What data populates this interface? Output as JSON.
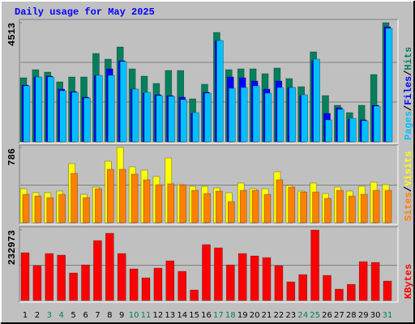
{
  "chart_data": [
    {
      "type": "bar",
      "title": "Daily usage for May 2025",
      "title_color": "#0000ff",
      "legend_separator": "/",
      "ylim": [
        0,
        4513
      ],
      "yticks": [
        4513
      ],
      "grid_lines": 3,
      "series": [
        {
          "name": "Hits",
          "color": "#00805c",
          "values": [
            2425,
            2732,
            2640,
            2272,
            2456,
            2456,
            3346,
            3131,
            3592,
            2763,
            2487,
            2210,
            2702,
            2702,
            1627,
            2180,
            4144,
            2732,
            2763,
            2763,
            2579,
            2794,
            2395,
            2088,
            3408,
            1750,
            1382,
            1105,
            1382,
            2548,
            4513
          ]
        },
        {
          "name": "Files",
          "color": "#0000ff",
          "values": [
            2149,
            2456,
            2487,
            1996,
            1903,
            1689,
            2517,
            2763,
            3070,
            1996,
            1842,
            1781,
            1750,
            1689,
            1075,
            1873,
            3838,
            2456,
            2425,
            2303,
            1996,
            2303,
            2057,
            1750,
            3070,
            1075,
            1289,
            860,
            829,
            1382,
            4359
          ]
        },
        {
          "name": "Pages",
          "color": "#00c0ff",
          "values": [
            2118,
            2456,
            2456,
            1934,
            1873,
            1658,
            2517,
            2517,
            3039,
            1996,
            1873,
            1750,
            1719,
            1596,
            1105,
            1842,
            3838,
            2026,
            2057,
            2118,
            1842,
            2057,
            2057,
            1781,
            3131,
            829,
            1228,
            890,
            798,
            1351,
            4298
          ]
        }
      ]
    },
    {
      "type": "bar",
      "legend_separator": "/",
      "ylim": [
        0,
        786
      ],
      "yticks": [
        786
      ],
      "grid_lines": 2,
      "series": [
        {
          "name": "Visits",
          "color": "#ffff00",
          "values": [
            355,
            313,
            313,
            330,
            617,
            296,
            372,
            642,
            786,
            583,
            549,
            482,
            676,
            397,
            380,
            380,
            363,
            313,
            414,
            355,
            355,
            532,
            389,
            330,
            414,
            304,
            372,
            330,
            380,
            423,
            397
          ]
        },
        {
          "name": "Sites",
          "color": "#ff8000",
          "values": [
            296,
            279,
            262,
            296,
            515,
            262,
            355,
            558,
            558,
            507,
            448,
            397,
            406,
            397,
            338,
            304,
            330,
            220,
            338,
            338,
            296,
            448,
            372,
            321,
            321,
            254,
            338,
            279,
            296,
            338,
            338
          ]
        }
      ]
    },
    {
      "type": "bar",
      "ylim": [
        0,
        232973
      ],
      "yticks": [
        232973
      ],
      "grid_lines": 2,
      "series": [
        {
          "name": "KBytes",
          "color": "#ff0000",
          "values": [
            158000,
            115154,
            155324,
            149968,
            91052,
            117832,
            198172,
            222274,
            155324,
            104442,
            74984,
            107120,
            131222,
            96408,
            34814,
            184782,
            174070,
            117832,
            155324,
            147290,
            141934,
            115154,
            61594,
            85696,
            232973,
            83018,
            37492,
            53560,
            128544,
            125866,
            64272
          ]
        }
      ],
      "categories": [
        "1",
        "2",
        "3",
        "4",
        "5",
        "6",
        "7",
        "8",
        "9",
        "10",
        "11",
        "12",
        "13",
        "14",
        "15",
        "16",
        "17",
        "18",
        "19",
        "20",
        "21",
        "22",
        "23",
        "24",
        "25",
        "26",
        "27",
        "28",
        "29",
        "30",
        "31"
      ],
      "category_colors": [
        "#000000",
        "#000000",
        "#00805c",
        "#00805c",
        "#000000",
        "#000000",
        "#000000",
        "#000000",
        "#000000",
        "#00805c",
        "#00805c",
        "#000000",
        "#000000",
        "#000000",
        "#000000",
        "#000000",
        "#00805c",
        "#00805c",
        "#000000",
        "#000000",
        "#000000",
        "#000000",
        "#000000",
        "#00805c",
        "#00805c",
        "#000000",
        "#000000",
        "#000000",
        "#000000",
        "#000000",
        "#00805c"
      ]
    }
  ]
}
